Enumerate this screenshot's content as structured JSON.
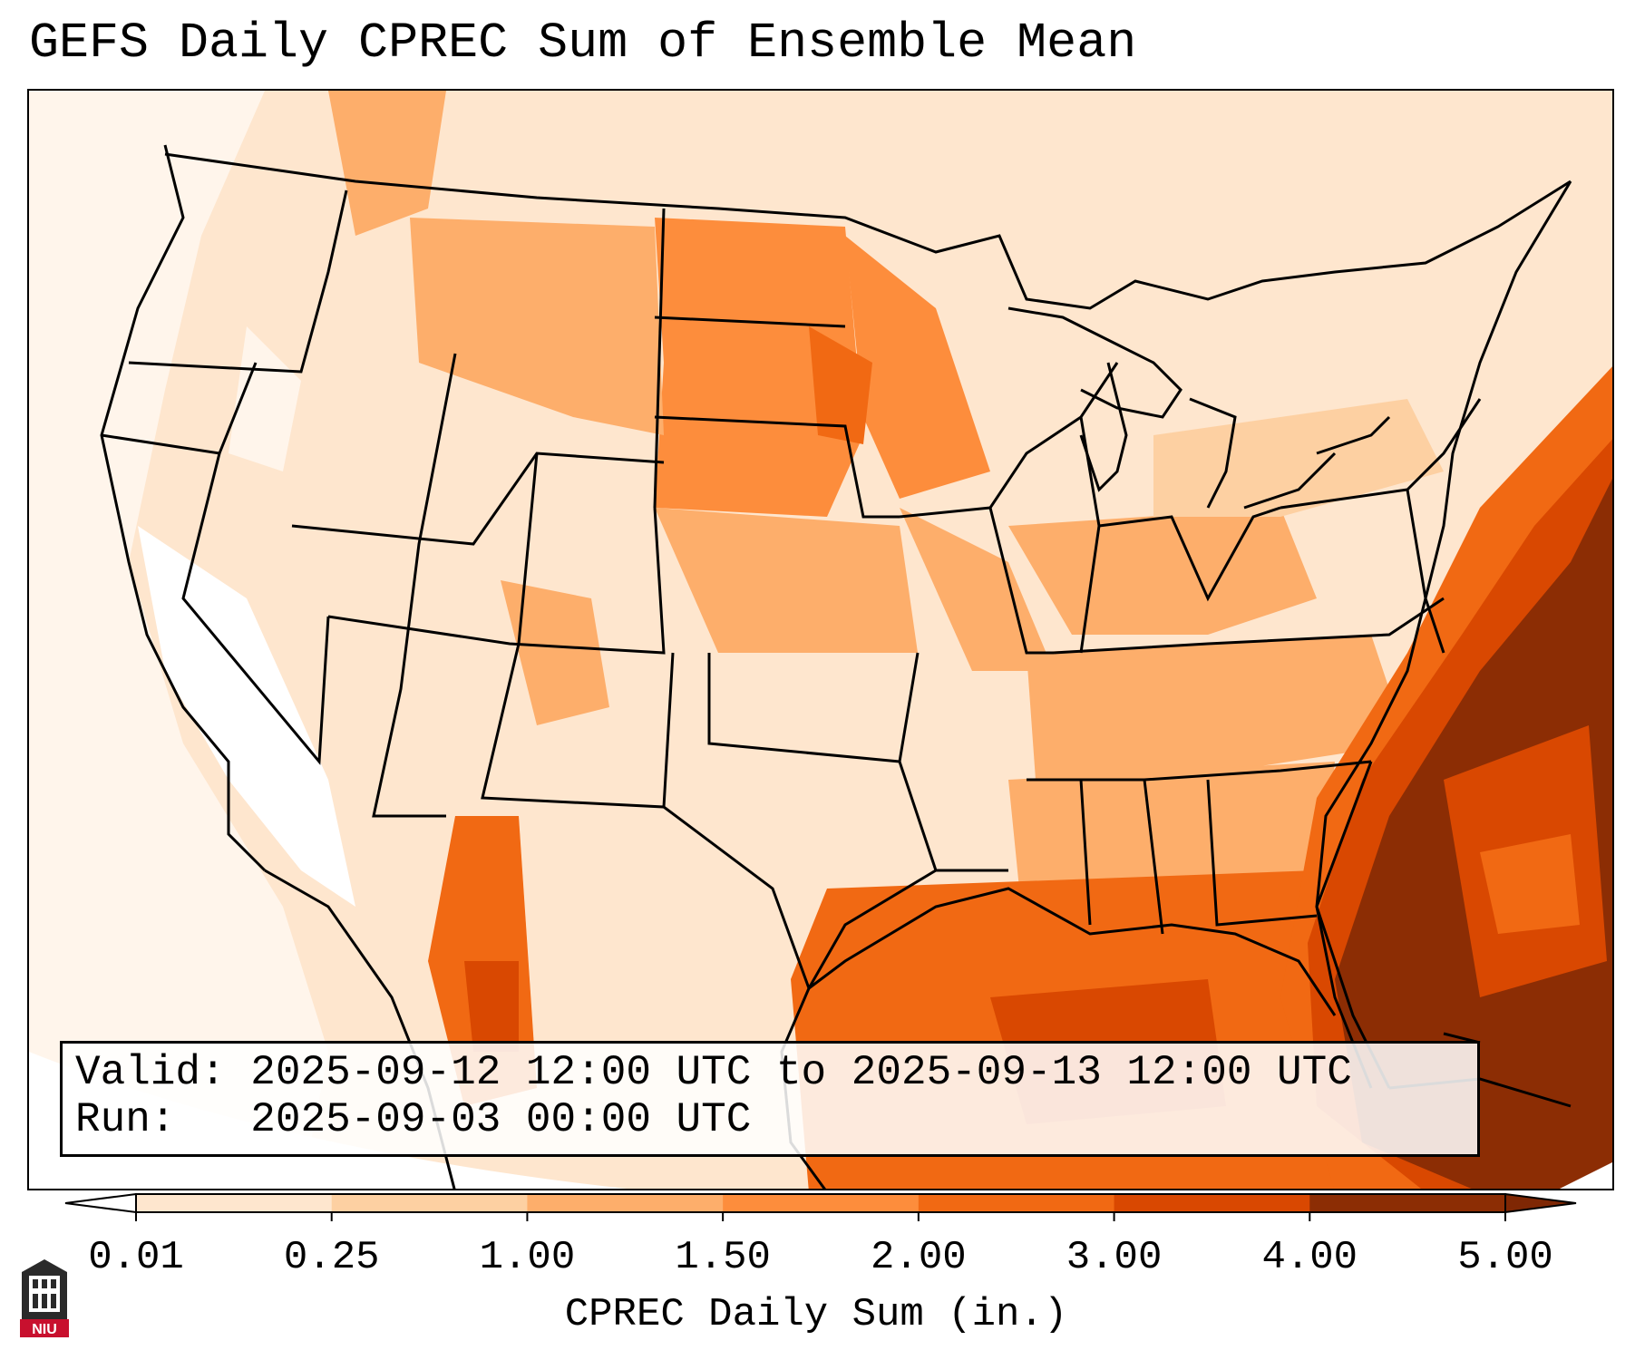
{
  "title": "GEFS Daily CPREC Sum of Ensemble Mean",
  "info": {
    "valid_label": "Valid:",
    "valid_value": "2025-09-12 12:00 UTC to 2025-09-13 12:00 UTC",
    "run_label": "Run:",
    "run_value": "2025-09-03 00:00 UTC"
  },
  "colorbar": {
    "label": "CPREC Daily Sum (in.)",
    "ticks": [
      "0.01",
      "0.25",
      "1.00",
      "1.50",
      "2.00",
      "3.00",
      "4.00",
      "5.00"
    ],
    "colors": [
      "#fff5eb",
      "#fee6ce",
      "#fdd0a2",
      "#fdae6b",
      "#fd8d3c",
      "#f16913",
      "#d94801",
      "#8c2d04"
    ],
    "under_color": "#ffffff",
    "over_color": "#7f2704"
  },
  "logo": {
    "name": "NIU"
  },
  "palette": {
    "land_line": "#000000",
    "background": "#ffffff"
  }
}
